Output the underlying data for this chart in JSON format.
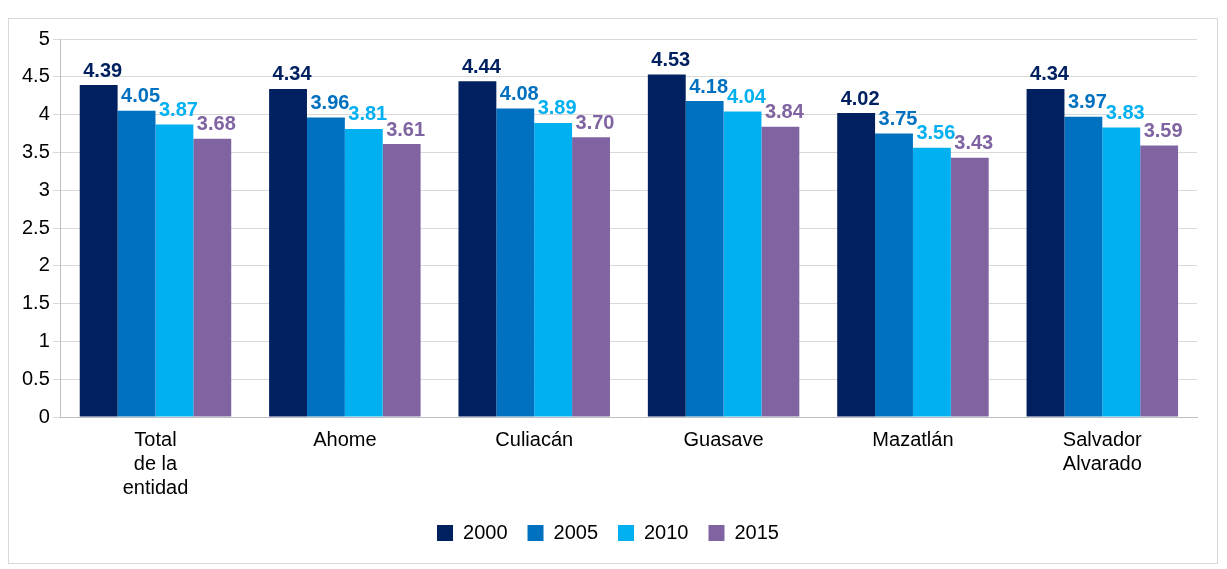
{
  "chart_data": {
    "type": "bar",
    "categories": [
      "Total de la entidad",
      "Ahome",
      "Culiacán",
      "Guasave",
      "Mazatlán",
      "Salvador Alvarado"
    ],
    "series": [
      {
        "name": "2000",
        "color": "#002060",
        "values": [
          4.39,
          4.34,
          4.44,
          4.53,
          4.02,
          4.34
        ],
        "value_labels": [
          "4.39",
          "4.34",
          "4.44",
          "4.53",
          "4.02",
          "4.34"
        ]
      },
      {
        "name": "2005",
        "color": "#0070c0",
        "values": [
          4.05,
          3.96,
          4.08,
          4.18,
          3.75,
          3.97
        ],
        "value_labels": [
          "4.05",
          "3.96",
          "4.08",
          "4.18",
          "3.75",
          "3.97"
        ]
      },
      {
        "name": "2010",
        "color": "#00b0f0",
        "values": [
          3.87,
          3.81,
          3.89,
          4.04,
          3.56,
          3.83
        ],
        "value_labels": [
          "3.87",
          "3.81",
          "3.89",
          "4.04",
          "3.56",
          "3.83"
        ]
      },
      {
        "name": "2015",
        "color": "#8064a2",
        "values": [
          3.68,
          3.61,
          3.7,
          3.84,
          3.43,
          3.59
        ],
        "value_labels": [
          "3.68",
          "3.61",
          "3.70",
          "3.84",
          "3.43",
          "3.59"
        ]
      }
    ],
    "ylim": [
      0,
      5
    ],
    "yticks": [
      0,
      0.5,
      1,
      1.5,
      2,
      2.5,
      3,
      3.5,
      4,
      4.5,
      5
    ],
    "grid": "y",
    "legend": "bottom"
  }
}
